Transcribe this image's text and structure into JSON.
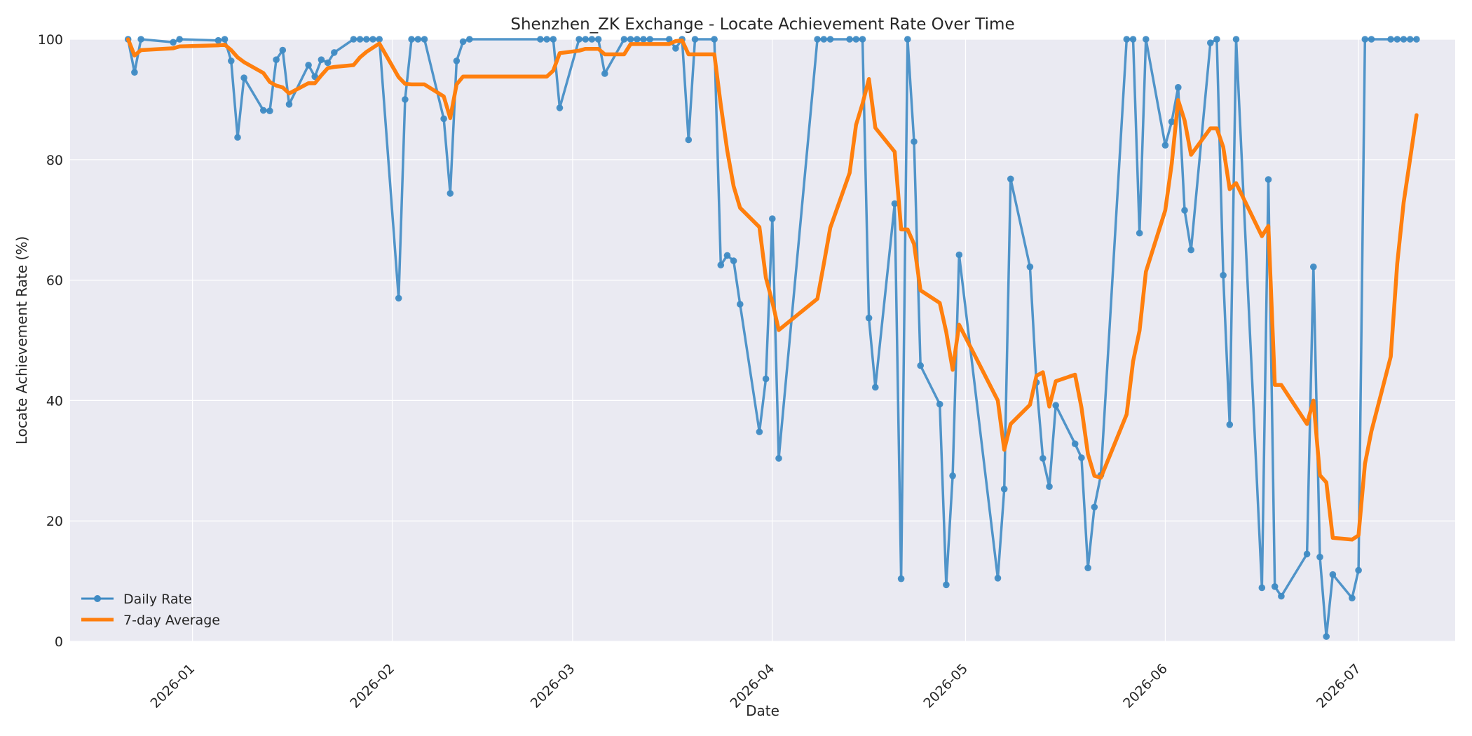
{
  "chart_data": {
    "type": "line",
    "title": "Shenzhen_ZK Exchange - Locate Achievement Rate Over Time",
    "xlabel": "Date",
    "ylabel": "Locate Achievement Rate (%)",
    "xlim": [
      "2025-12-13",
      "2026-07-16"
    ],
    "ylim": [
      0,
      100
    ],
    "x_ticks": [
      "2026-01-01",
      "2026-02-01",
      "2026-03-01",
      "2026-04-01",
      "2026-05-01",
      "2026-06-01",
      "2026-07-01"
    ],
    "x_tick_labels": [
      "2026-01",
      "2026-02",
      "2026-03",
      "2026-04",
      "2026-05",
      "2026-06",
      "2026-07"
    ],
    "y_ticks": [
      0,
      20,
      40,
      60,
      80,
      100
    ],
    "y_tick_labels": [
      "0",
      "20",
      "40",
      "60",
      "80",
      "100"
    ],
    "grid": true,
    "legend_position": "lower-left",
    "colors": {
      "background": "#eaeaf2",
      "grid": "#ffffff",
      "daily": "#3f8bc4",
      "avg": "#ff7f0e"
    },
    "series": [
      {
        "name": "Daily Rate",
        "marker": "circle",
        "points": [
          [
            "2025-12-22",
            100
          ],
          [
            "2025-12-23",
            94.5
          ],
          [
            "2025-12-24",
            100
          ],
          [
            "2025-12-29",
            99.5
          ],
          [
            "2025-12-30",
            100
          ],
          [
            "2026-01-05",
            99.8
          ],
          [
            "2026-01-06",
            100
          ],
          [
            "2026-01-07",
            96.4
          ],
          [
            "2026-01-08",
            83.7
          ],
          [
            "2026-01-09",
            93.6
          ],
          [
            "2026-01-12",
            88.2
          ],
          [
            "2026-01-13",
            88.1
          ],
          [
            "2026-01-14",
            96.6
          ],
          [
            "2026-01-15",
            98.2
          ],
          [
            "2026-01-16",
            89.2
          ],
          [
            "2026-01-19",
            95.7
          ],
          [
            "2026-01-20",
            93.8
          ],
          [
            "2026-01-21",
            96.6
          ],
          [
            "2026-01-22",
            96.1
          ],
          [
            "2026-01-23",
            97.8
          ],
          [
            "2026-01-26",
            100
          ],
          [
            "2026-01-27",
            100
          ],
          [
            "2026-01-28",
            100
          ],
          [
            "2026-01-29",
            100
          ],
          [
            "2026-01-30",
            100
          ],
          [
            "2026-02-02",
            57
          ],
          [
            "2026-02-03",
            90
          ],
          [
            "2026-02-04",
            100
          ],
          [
            "2026-02-05",
            100
          ],
          [
            "2026-02-06",
            100
          ],
          [
            "2026-02-09",
            86.8
          ],
          [
            "2026-02-10",
            74.4
          ],
          [
            "2026-02-11",
            96.4
          ],
          [
            "2026-02-12",
            99.6
          ],
          [
            "2026-02-13",
            100
          ],
          [
            "2026-02-24",
            100
          ],
          [
            "2026-02-25",
            100
          ],
          [
            "2026-02-26",
            100
          ],
          [
            "2026-02-27",
            88.6
          ],
          [
            "2026-03-02",
            100
          ],
          [
            "2026-03-03",
            100
          ],
          [
            "2026-03-04",
            100
          ],
          [
            "2026-03-05",
            100
          ],
          [
            "2026-03-06",
            94.3
          ],
          [
            "2026-03-09",
            100
          ],
          [
            "2026-03-10",
            100
          ],
          [
            "2026-03-11",
            100
          ],
          [
            "2026-03-12",
            100
          ],
          [
            "2026-03-13",
            100
          ],
          [
            "2026-03-16",
            100
          ],
          [
            "2026-03-17",
            98.5
          ],
          [
            "2026-03-18",
            100
          ],
          [
            "2026-03-19",
            83.3
          ],
          [
            "2026-03-20",
            100
          ],
          [
            "2026-03-23",
            100
          ],
          [
            "2026-03-24",
            62.5
          ],
          [
            "2026-03-25",
            64.1
          ],
          [
            "2026-03-26",
            63.2
          ],
          [
            "2026-03-27",
            56
          ],
          [
            "2026-03-30",
            34.8
          ],
          [
            "2026-03-31",
            43.6
          ],
          [
            "2026-04-01",
            70.2
          ],
          [
            "2026-04-02",
            30.4
          ],
          [
            "2026-04-08",
            100
          ],
          [
            "2026-04-09",
            100
          ],
          [
            "2026-04-10",
            100
          ],
          [
            "2026-04-13",
            100
          ],
          [
            "2026-04-14",
            100
          ],
          [
            "2026-04-15",
            100
          ],
          [
            "2026-04-16",
            53.7
          ],
          [
            "2026-04-17",
            42.2
          ],
          [
            "2026-04-20",
            72.7
          ],
          [
            "2026-04-21",
            10.4
          ],
          [
            "2026-04-22",
            100
          ],
          [
            "2026-04-23",
            83
          ],
          [
            "2026-04-24",
            45.8
          ],
          [
            "2026-04-27",
            39.4
          ],
          [
            "2026-04-28",
            9.4
          ],
          [
            "2026-04-29",
            27.5
          ],
          [
            "2026-04-30",
            64.2
          ],
          [
            "2026-05-06",
            10.5
          ],
          [
            "2026-05-07",
            25.3
          ],
          [
            "2026-05-08",
            76.8
          ],
          [
            "2026-05-11",
            62.2
          ],
          [
            "2026-05-12",
            43
          ],
          [
            "2026-05-13",
            30.4
          ],
          [
            "2026-05-14",
            25.7
          ],
          [
            "2026-05-15",
            39.2
          ],
          [
            "2026-05-18",
            32.8
          ],
          [
            "2026-05-19",
            30.5
          ],
          [
            "2026-05-20",
            12.2
          ],
          [
            "2026-05-21",
            22.3
          ],
          [
            "2026-05-22",
            27.6
          ],
          [
            "2026-05-26",
            100
          ],
          [
            "2026-05-27",
            100
          ],
          [
            "2026-05-28",
            67.8
          ],
          [
            "2026-05-29",
            100
          ],
          [
            "2026-06-01",
            82.4
          ],
          [
            "2026-06-02",
            86.3
          ],
          [
            "2026-06-03",
            92
          ],
          [
            "2026-06-04",
            71.6
          ],
          [
            "2026-06-05",
            65
          ],
          [
            "2026-06-08",
            99.4
          ],
          [
            "2026-06-09",
            100
          ],
          [
            "2026-06-10",
            60.8
          ],
          [
            "2026-06-11",
            36
          ],
          [
            "2026-06-12",
            100
          ],
          [
            "2026-06-16",
            8.9
          ],
          [
            "2026-06-17",
            76.7
          ],
          [
            "2026-06-18",
            9.1
          ],
          [
            "2026-06-19",
            7.5
          ],
          [
            "2026-06-23",
            14.5
          ],
          [
            "2026-06-24",
            62.2
          ],
          [
            "2026-06-25",
            14
          ],
          [
            "2026-06-26",
            0.8
          ],
          [
            "2026-06-27",
            11.1
          ],
          [
            "2026-06-30",
            7.2
          ],
          [
            "2026-07-01",
            11.8
          ],
          [
            "2026-07-02",
            100
          ],
          [
            "2026-07-03",
            100
          ],
          [
            "2026-07-06",
            100
          ],
          [
            "2026-07-07",
            100
          ],
          [
            "2026-07-08",
            100
          ],
          [
            "2026-07-09",
            100
          ],
          [
            "2026-07-10",
            100
          ]
        ]
      },
      {
        "name": "7-day Average",
        "marker": "none",
        "points": [
          [
            "2025-12-22",
            100
          ],
          [
            "2025-12-23",
            97.3
          ],
          [
            "2025-12-24",
            98.2
          ],
          [
            "2025-12-29",
            98.5
          ],
          [
            "2025-12-30",
            98.8
          ],
          [
            "2026-01-05",
            99
          ],
          [
            "2026-01-06",
            99.1
          ],
          [
            "2026-01-07",
            98.2
          ],
          [
            "2026-01-08",
            97
          ],
          [
            "2026-01-09",
            96.2
          ],
          [
            "2026-01-12",
            94.4
          ],
          [
            "2026-01-13",
            92.9
          ],
          [
            "2026-01-14",
            92.3
          ],
          [
            "2026-01-15",
            92
          ],
          [
            "2026-01-16",
            91
          ],
          [
            "2026-01-19",
            92.7
          ],
          [
            "2026-01-20",
            92.7
          ],
          [
            "2026-01-21",
            94
          ],
          [
            "2026-01-22",
            95.2
          ],
          [
            "2026-01-23",
            95.4
          ],
          [
            "2026-01-26",
            95.7
          ],
          [
            "2026-01-27",
            97
          ],
          [
            "2026-01-28",
            97.9
          ],
          [
            "2026-01-29",
            98.6
          ],
          [
            "2026-01-30",
            99.3
          ],
          [
            "2026-02-02",
            93.7
          ],
          [
            "2026-02-03",
            92.6
          ],
          [
            "2026-02-04",
            92.5
          ],
          [
            "2026-02-05",
            92.5
          ],
          [
            "2026-02-06",
            92.5
          ],
          [
            "2026-02-09",
            90.5
          ],
          [
            "2026-02-10",
            86.9
          ],
          [
            "2026-02-11",
            92.5
          ],
          [
            "2026-02-12",
            93.8
          ],
          [
            "2026-02-13",
            93.8
          ],
          [
            "2026-02-24",
            93.8
          ],
          [
            "2026-02-25",
            93.8
          ],
          [
            "2026-02-26",
            94.8
          ],
          [
            "2026-02-27",
            97.7
          ],
          [
            "2026-03-02",
            98.1
          ],
          [
            "2026-03-03",
            98.4
          ],
          [
            "2026-03-04",
            98.4
          ],
          [
            "2026-03-05",
            98.4
          ],
          [
            "2026-03-06",
            97.5
          ],
          [
            "2026-03-09",
            97.5
          ],
          [
            "2026-03-10",
            99.2
          ],
          [
            "2026-03-11",
            99.2
          ],
          [
            "2026-03-12",
            99.2
          ],
          [
            "2026-03-13",
            99.2
          ],
          [
            "2026-03-16",
            99.2
          ],
          [
            "2026-03-17",
            99.7
          ],
          [
            "2026-03-18",
            99.8
          ],
          [
            "2026-03-19",
            97.5
          ],
          [
            "2026-03-20",
            97.5
          ],
          [
            "2026-03-23",
            97.5
          ],
          [
            "2026-03-24",
            89.1
          ],
          [
            "2026-03-25",
            81.5
          ],
          [
            "2026-03-26",
            75.6
          ],
          [
            "2026-03-27",
            72
          ],
          [
            "2026-03-30",
            68.8
          ],
          [
            "2026-03-31",
            60.4
          ],
          [
            "2026-04-01",
            56.4
          ],
          [
            "2026-04-02",
            51.7
          ],
          [
            "2026-04-08",
            56.9
          ],
          [
            "2026-04-09",
            62.7
          ],
          [
            "2026-04-10",
            68.7
          ],
          [
            "2026-04-13",
            77.8
          ],
          [
            "2026-04-14",
            85.8
          ],
          [
            "2026-04-15",
            89.3
          ],
          [
            "2026-04-16",
            93.4
          ],
          [
            "2026-04-17",
            85.3
          ],
          [
            "2026-04-20",
            81.3
          ],
          [
            "2026-04-21",
            68.4
          ],
          [
            "2026-04-22",
            68.4
          ],
          [
            "2026-04-23",
            66
          ],
          [
            "2026-04-24",
            58.3
          ],
          [
            "2026-04-27",
            56.2
          ],
          [
            "2026-04-28",
            51.4
          ],
          [
            "2026-04-29",
            45.1
          ],
          [
            "2026-04-30",
            52.6
          ],
          [
            "2026-05-06",
            40
          ],
          [
            "2026-05-07",
            31.8
          ],
          [
            "2026-05-08",
            36.1
          ],
          [
            "2026-05-11",
            39.3
          ],
          [
            "2026-05-12",
            44.1
          ],
          [
            "2026-05-13",
            44.7
          ],
          [
            "2026-05-14",
            39
          ],
          [
            "2026-05-15",
            43.2
          ],
          [
            "2026-05-18",
            44.3
          ],
          [
            "2026-05-19",
            38.8
          ],
          [
            "2026-05-20",
            31.1
          ],
          [
            "2026-05-21",
            27.5
          ],
          [
            "2026-05-22",
            27.2
          ],
          [
            "2026-05-26",
            37.7
          ],
          [
            "2026-05-27",
            46.5
          ],
          [
            "2026-05-28",
            51.6
          ],
          [
            "2026-05-29",
            61.4
          ],
          [
            "2026-06-01",
            71.6
          ],
          [
            "2026-06-02",
            79.3
          ],
          [
            "2026-06-03",
            89.9
          ],
          [
            "2026-06-04",
            86.5
          ],
          [
            "2026-06-05",
            80.8
          ],
          [
            "2026-06-08",
            85.2
          ],
          [
            "2026-06-09",
            85.2
          ],
          [
            "2026-06-10",
            82.1
          ],
          [
            "2026-06-11",
            75.1
          ],
          [
            "2026-06-12",
            76.1
          ],
          [
            "2026-06-16",
            67.3
          ],
          [
            "2026-06-17",
            69
          ],
          [
            "2026-06-18",
            42.6
          ],
          [
            "2026-06-19",
            42.6
          ],
          [
            "2026-06-23",
            36.1
          ],
          [
            "2026-06-24",
            40
          ],
          [
            "2026-06-25",
            27.6
          ],
          [
            "2026-06-26",
            26.4
          ],
          [
            "2026-06-27",
            17.2
          ],
          [
            "2026-06-30",
            16.9
          ],
          [
            "2026-07-01",
            17.6
          ],
          [
            "2026-07-02",
            29.5
          ],
          [
            "2026-07-03",
            34.9
          ],
          [
            "2026-07-06",
            47.3
          ],
          [
            "2026-07-07",
            62.7
          ],
          [
            "2026-07-08",
            72.9
          ],
          [
            "2026-07-09",
            80.1
          ],
          [
            "2026-07-10",
            87.4
          ]
        ]
      }
    ]
  }
}
